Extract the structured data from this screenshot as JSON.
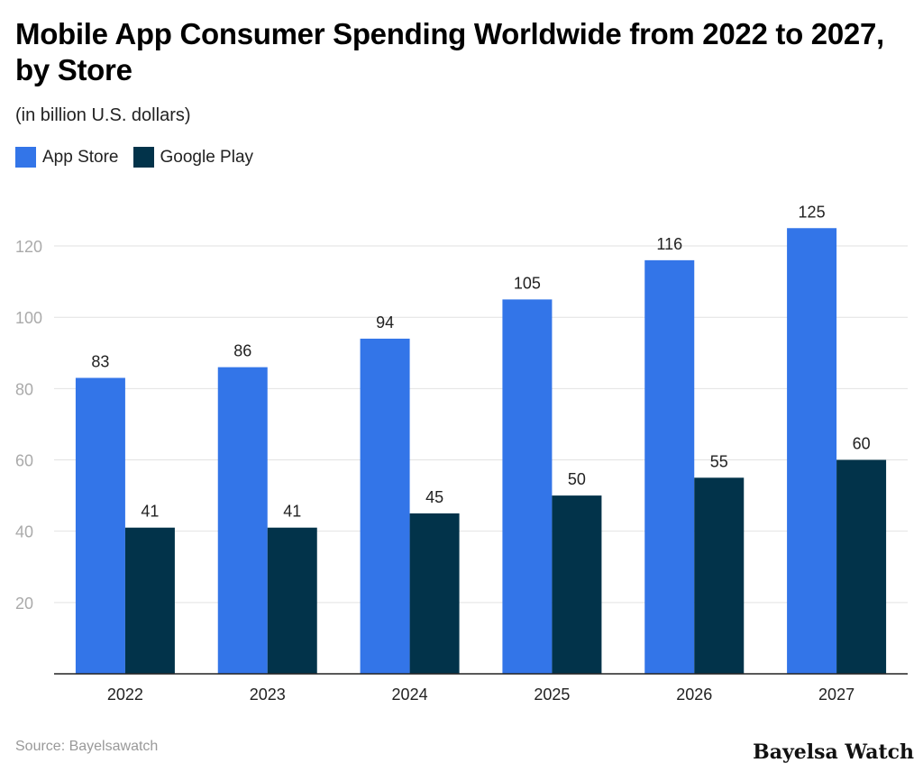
{
  "chart_data": {
    "type": "bar",
    "title": "Mobile App Consumer Spending Worldwide from 2022 to 2027, by Store",
    "subtitle": "(in billion U.S. dollars)",
    "categories": [
      "2022",
      "2023",
      "2024",
      "2025",
      "2026",
      "2027"
    ],
    "series": [
      {
        "name": "App Store",
        "color": "#3375E8",
        "values": [
          83,
          86,
          94,
          105,
          116,
          125
        ]
      },
      {
        "name": "Google Play",
        "color": "#02334A",
        "values": [
          41,
          41,
          45,
          50,
          55,
          60
        ]
      }
    ],
    "ylim": [
      0,
      130
    ],
    "yticks": [
      20,
      40,
      60,
      80,
      100,
      120
    ],
    "grid": true,
    "legend": "top-left",
    "source": "Source: Bayelsawatch"
  },
  "watermark": "Bayelsa Watch"
}
